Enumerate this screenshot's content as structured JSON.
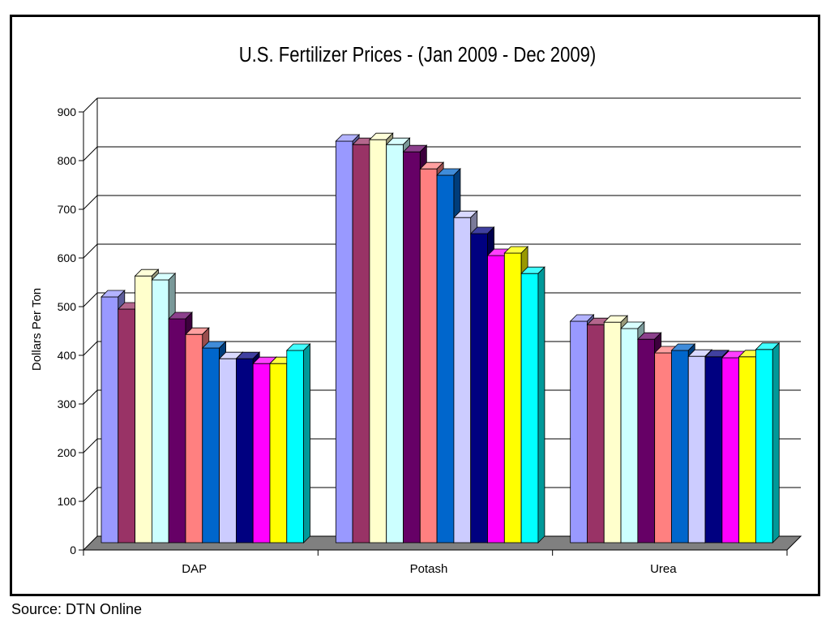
{
  "source": "Source: DTN Online",
  "chart_data": {
    "type": "bar",
    "title": "U.S. Fertilizer Prices - (Jan 2009 - Dec 2009)",
    "xlabel": "",
    "ylabel": "Dollars Per Ton",
    "ylim": [
      0,
      900
    ],
    "yticks": [
      0,
      100,
      200,
      300,
      400,
      500,
      600,
      700,
      800,
      900
    ],
    "grid": "horizontal",
    "legend": "none",
    "categories": [
      "DAP",
      "Potash",
      "Urea"
    ],
    "series": [
      {
        "values": [
          505,
          825,
          455
        ],
        "color": "#9999FF"
      },
      {
        "values": [
          480,
          818,
          448
        ],
        "color": "#993366"
      },
      {
        "values": [
          548,
          828,
          453
        ],
        "color": "#FFFFCC"
      },
      {
        "values": [
          540,
          818,
          440
        ],
        "color": "#CCFFFF"
      },
      {
        "values": [
          460,
          803,
          418
        ],
        "color": "#660066"
      },
      {
        "values": [
          428,
          768,
          390
        ],
        "color": "#FF8080"
      },
      {
        "values": [
          400,
          755,
          395
        ],
        "color": "#0066CC"
      },
      {
        "values": [
          378,
          668,
          383
        ],
        "color": "#CCCCFF"
      },
      {
        "values": [
          378,
          635,
          382
        ],
        "color": "#000080"
      },
      {
        "values": [
          368,
          590,
          380
        ],
        "color": "#FF00FF"
      },
      {
        "values": [
          368,
          595,
          382
        ],
        "color": "#FFFF00"
      },
      {
        "values": [
          395,
          553,
          397
        ],
        "color": "#00FFFF"
      }
    ]
  }
}
